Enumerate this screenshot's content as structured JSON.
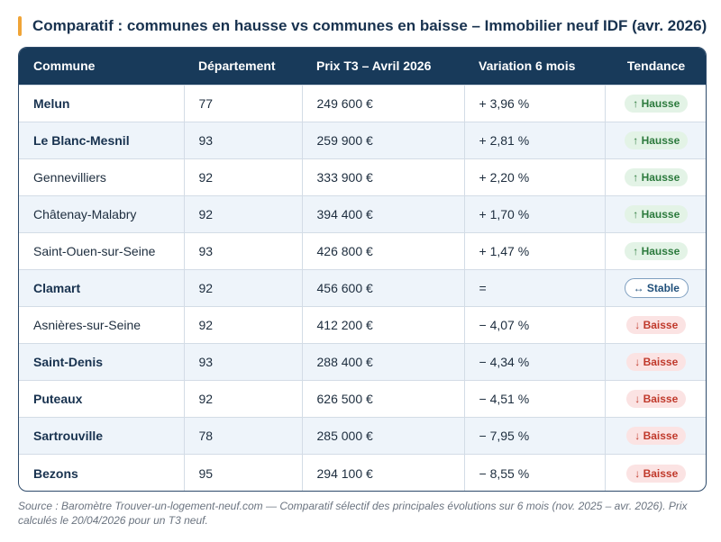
{
  "title": "Comparatif : communes en hausse vs communes en baisse – Immobilier neuf IDF (avr. 2026)",
  "colors": {
    "accent": "#f0a437",
    "header": "#183a5a",
    "up": "#2c7a3d",
    "down": "#c0392b",
    "stable": "#1f4f7a"
  },
  "table": {
    "headers": [
      "Commune",
      "Département",
      "Prix T3 – Avril 2026",
      "Variation 6 mois",
      "Tendance"
    ],
    "rows": [
      {
        "commune": "Melun",
        "bold": true,
        "departement": "77",
        "prix": "249 600 €",
        "variation": "+ 3,96 %",
        "tendance": "↑ Hausse",
        "trend": "up"
      },
      {
        "commune": "Le Blanc-Mesnil",
        "bold": true,
        "departement": "93",
        "prix": "259 900 €",
        "variation": "+ 2,81 %",
        "tendance": "↑ Hausse",
        "trend": "up"
      },
      {
        "commune": "Gennevilliers",
        "bold": false,
        "departement": "92",
        "prix": "333 900 €",
        "variation": "+ 2,20 %",
        "tendance": "↑ Hausse",
        "trend": "up"
      },
      {
        "commune": "Châtenay-Malabry",
        "bold": false,
        "departement": "92",
        "prix": "394 400 €",
        "variation": "+ 1,70 %",
        "tendance": "↑ Hausse",
        "trend": "up"
      },
      {
        "commune": "Saint-Ouen-sur-Seine",
        "bold": false,
        "departement": "93",
        "prix": "426 800 €",
        "variation": "+ 1,47 %",
        "tendance": "↑ Hausse",
        "trend": "up"
      },
      {
        "commune": "Clamart",
        "bold": true,
        "departement": "92",
        "prix": "456 600 €",
        "variation": "=",
        "tendance": "↔ Stable",
        "trend": "stable"
      },
      {
        "commune": "Asnières-sur-Seine",
        "bold": false,
        "departement": "92",
        "prix": "412 200 €",
        "variation": "− 4,07 %",
        "tendance": "↓ Baisse",
        "trend": "down"
      },
      {
        "commune": "Saint-Denis",
        "bold": true,
        "departement": "93",
        "prix": "288 400 €",
        "variation": "− 4,34 %",
        "tendance": "↓ Baisse",
        "trend": "down"
      },
      {
        "commune": "Puteaux",
        "bold": true,
        "departement": "92",
        "prix": "626 500 €",
        "variation": "− 4,51 %",
        "tendance": "↓ Baisse",
        "trend": "down"
      },
      {
        "commune": "Sartrouville",
        "bold": true,
        "departement": "78",
        "prix": "285 000 €",
        "variation": "− 7,95 %",
        "tendance": "↓ Baisse",
        "trend": "down"
      },
      {
        "commune": "Bezons",
        "bold": true,
        "departement": "95",
        "prix": "294 100 €",
        "variation": "− 8,55 %",
        "tendance": "↓ Baisse",
        "trend": "down"
      }
    ]
  },
  "source": "Source : Baromètre Trouver-un-logement-neuf.com — Comparatif sélectif des principales évolutions sur 6 mois (nov. 2025 – avr. 2026). Prix calculés le 20/04/2026 pour un T3 neuf."
}
